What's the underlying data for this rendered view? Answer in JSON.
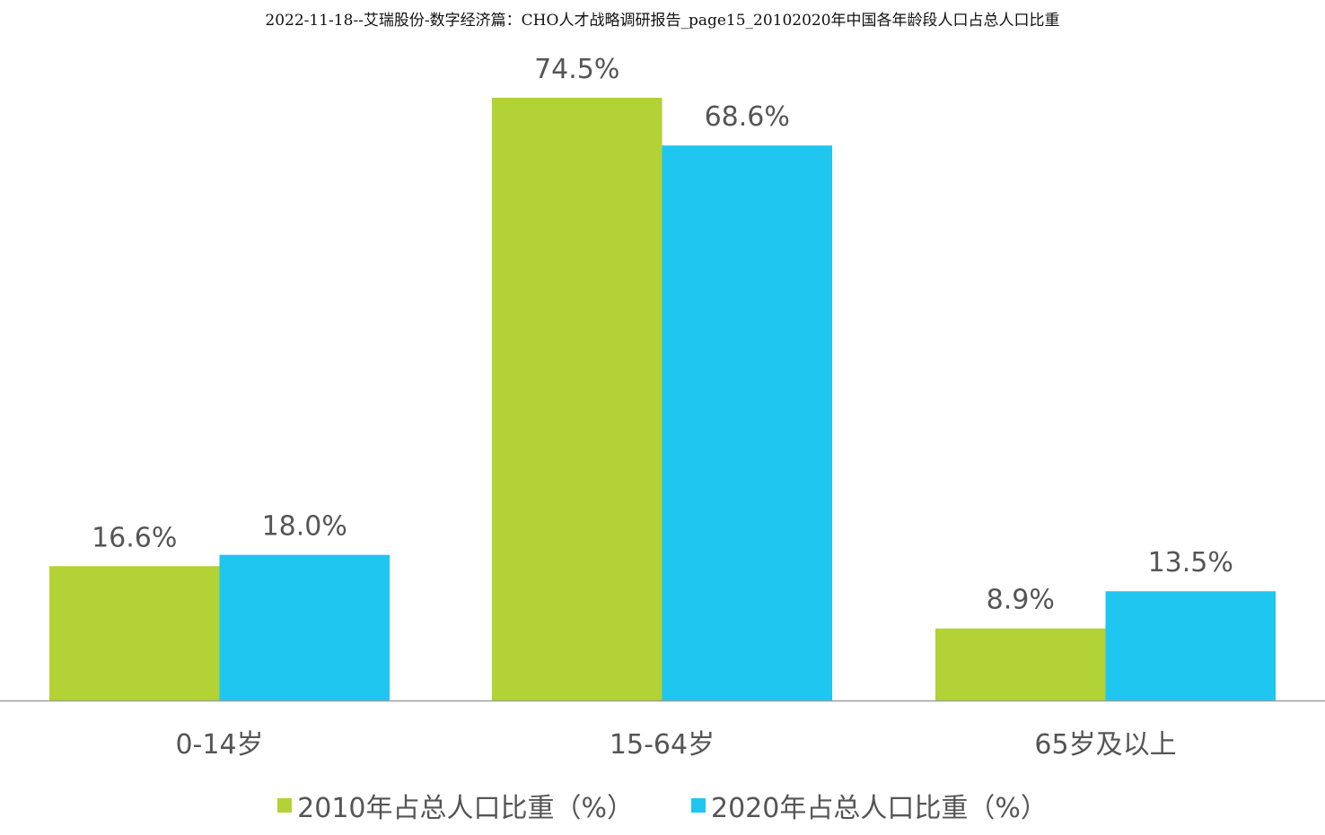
{
  "chart_data": {
    "type": "bar",
    "title": "2022-11-18--艾瑞股份-数字经济篇：CHO人才战略调研报告_page15_20102020年中国各年龄段人口占总人口比重",
    "categories": [
      "0-14岁",
      "15-64岁",
      "65岁及以上"
    ],
    "series": [
      {
        "name": "2010年占总人口比重（%）",
        "color": "#b2d235",
        "values": [
          16.6,
          74.5,
          8.9
        ],
        "labels": [
          "16.6%",
          "74.5%",
          "8.9%"
        ]
      },
      {
        "name": "2020年占总人口比重（%）",
        "color": "#1ec6f0",
        "values": [
          18.0,
          68.6,
          13.5
        ],
        "labels": [
          "18.0%",
          "68.6%",
          "13.5%"
        ]
      }
    ],
    "ylim": [
      0,
      80
    ],
    "grid": false,
    "legend_position": "bottom"
  }
}
